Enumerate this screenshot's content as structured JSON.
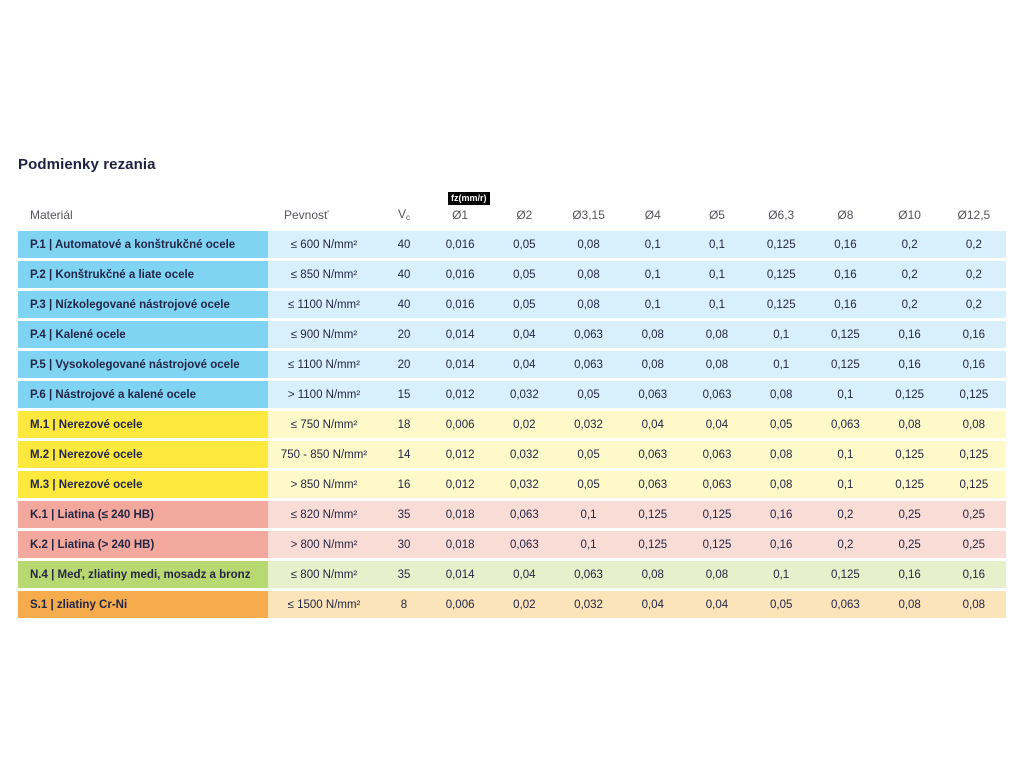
{
  "page": {
    "title": "Podmienky rezania"
  },
  "table": {
    "headers": {
      "material": "Materiál",
      "strength": "Pevnosť",
      "vc_main": "V",
      "vc_sub": "c",
      "fz_badge": "fz(mm/r)",
      "diameters": [
        "Ø1",
        "Ø2",
        "Ø3,15",
        "Ø4",
        "Ø5",
        "Ø6,3",
        "Ø8",
        "Ø10",
        "Ø12,5"
      ]
    },
    "colors": {
      "blue": {
        "label": "#7fd4f4",
        "tint": "#d8f0fb"
      },
      "yellow": {
        "label": "#fde93e",
        "tint": "#fdf9c9"
      },
      "red": {
        "label": "#f3a89e",
        "tint": "#fadcd6"
      },
      "green": {
        "label": "#b8d971",
        "tint": "#e6f0ca"
      },
      "orange": {
        "label": "#f6ac4d",
        "tint": "#fbe3ba"
      }
    },
    "rows": [
      {
        "material": "P.1 | Automatové a konštrukčné ocele",
        "strength": "≤ 600 N/mm²",
        "vc": "40",
        "color": "blue",
        "values": [
          "0,016",
          "0,05",
          "0,08",
          "0,1",
          "0,1",
          "0,125",
          "0,16",
          "0,2",
          "0,2"
        ]
      },
      {
        "material": "P.2 | Konštrukčné a liate ocele",
        "strength": "≤ 850 N/mm²",
        "vc": "40",
        "color": "blue",
        "values": [
          "0,016",
          "0,05",
          "0,08",
          "0,1",
          "0,1",
          "0,125",
          "0,16",
          "0,2",
          "0,2"
        ]
      },
      {
        "material": "P.3 | Nízkolegované nástrojové ocele",
        "strength": "≤ 1100 N/mm²",
        "vc": "40",
        "color": "blue",
        "values": [
          "0,016",
          "0,05",
          "0,08",
          "0,1",
          "0,1",
          "0,125",
          "0,16",
          "0,2",
          "0,2"
        ]
      },
      {
        "material": "P.4 | Kalené ocele",
        "strength": "≤ 900 N/mm²",
        "vc": "20",
        "color": "blue",
        "values": [
          "0,014",
          "0,04",
          "0,063",
          "0,08",
          "0,08",
          "0,1",
          "0,125",
          "0,16",
          "0,16"
        ]
      },
      {
        "material": "P.5 | Vysokolegované nástrojové ocele",
        "strength": "≤ 1100 N/mm²",
        "vc": "20",
        "color": "blue",
        "values": [
          "0,014",
          "0,04",
          "0,063",
          "0,08",
          "0,08",
          "0,1",
          "0,125",
          "0,16",
          "0,16"
        ]
      },
      {
        "material": "P.6 | Nástrojové a kalené ocele",
        "strength": "> 1100 N/mm²",
        "vc": "15",
        "color": "blue",
        "values": [
          "0,012",
          "0,032",
          "0,05",
          "0,063",
          "0,063",
          "0,08",
          "0,1",
          "0,125",
          "0,125"
        ]
      },
      {
        "material": "M.1 | Nerezové ocele",
        "strength": "≤ 750 N/mm²",
        "vc": "18",
        "color": "yellow",
        "values": [
          "0,006",
          "0,02",
          "0,032",
          "0,04",
          "0,04",
          "0,05",
          "0,063",
          "0,08",
          "0,08"
        ]
      },
      {
        "material": "M.2 | Nerezové ocele",
        "strength": "750 - 850 N/mm²",
        "vc": "14",
        "color": "yellow",
        "values": [
          "0,012",
          "0,032",
          "0,05",
          "0,063",
          "0,063",
          "0,08",
          "0,1",
          "0,125",
          "0,125"
        ]
      },
      {
        "material": "M.3 | Nerezové ocele",
        "strength": "> 850 N/mm²",
        "vc": "16",
        "color": "yellow",
        "values": [
          "0,012",
          "0,032",
          "0,05",
          "0,063",
          "0,063",
          "0,08",
          "0,1",
          "0,125",
          "0,125"
        ]
      },
      {
        "material": "K.1 | Liatina (≤ 240 HB)",
        "strength": "≤ 820 N/mm²",
        "vc": "35",
        "color": "red",
        "values": [
          "0,018",
          "0,063",
          "0,1",
          "0,125",
          "0,125",
          "0,16",
          "0,2",
          "0,25",
          "0,25"
        ]
      },
      {
        "material": "K.2 | Liatina (> 240 HB)",
        "strength": "> 800 N/mm²",
        "vc": "30",
        "color": "red",
        "values": [
          "0,018",
          "0,063",
          "0,1",
          "0,125",
          "0,125",
          "0,16",
          "0,2",
          "0,25",
          "0,25"
        ]
      },
      {
        "material": "N.4 | Meď, zliatiny medi, mosadz a bronz",
        "strength": "≤ 800 N/mm²",
        "vc": "35",
        "color": "green",
        "values": [
          "0,014",
          "0,04",
          "0,063",
          "0,08",
          "0,08",
          "0,1",
          "0,125",
          "0,16",
          "0,16"
        ]
      },
      {
        "material": "S.1 | zliatiny Cr-Ni",
        "strength": "≤ 1500 N/mm²",
        "vc": "8",
        "color": "orange",
        "values": [
          "0,006",
          "0,02",
          "0,032",
          "0,04",
          "0,04",
          "0,05",
          "0,063",
          "0,08",
          "0,08"
        ]
      }
    ]
  }
}
